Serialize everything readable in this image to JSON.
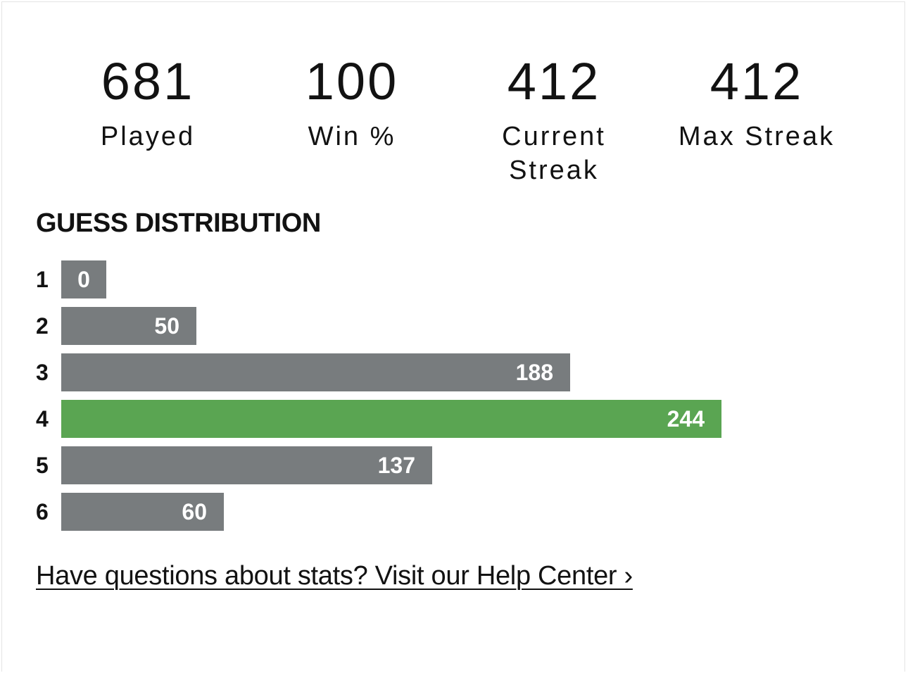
{
  "stats": [
    {
      "value": "681",
      "label": "Played"
    },
    {
      "value": "100",
      "label": "Win %"
    },
    {
      "value": "412",
      "label": "Current Streak"
    },
    {
      "value": "412",
      "label": "Max Streak"
    }
  ],
  "guess_distribution": {
    "title": "GUESS DISTRIBUTION",
    "highlight_guess": "4",
    "rows": [
      {
        "guess": "1",
        "count": "0"
      },
      {
        "guess": "2",
        "count": "50"
      },
      {
        "guess": "3",
        "count": "188"
      },
      {
        "guess": "4",
        "count": "244"
      },
      {
        "guess": "5",
        "count": "137"
      },
      {
        "guess": "6",
        "count": "60"
      }
    ]
  },
  "colors": {
    "bar_default": "#787c7e",
    "bar_highlight": "#5aa552",
    "text": "#121212"
  },
  "help_link": {
    "label": "Have questions about stats? Visit our Help Center ›"
  }
}
